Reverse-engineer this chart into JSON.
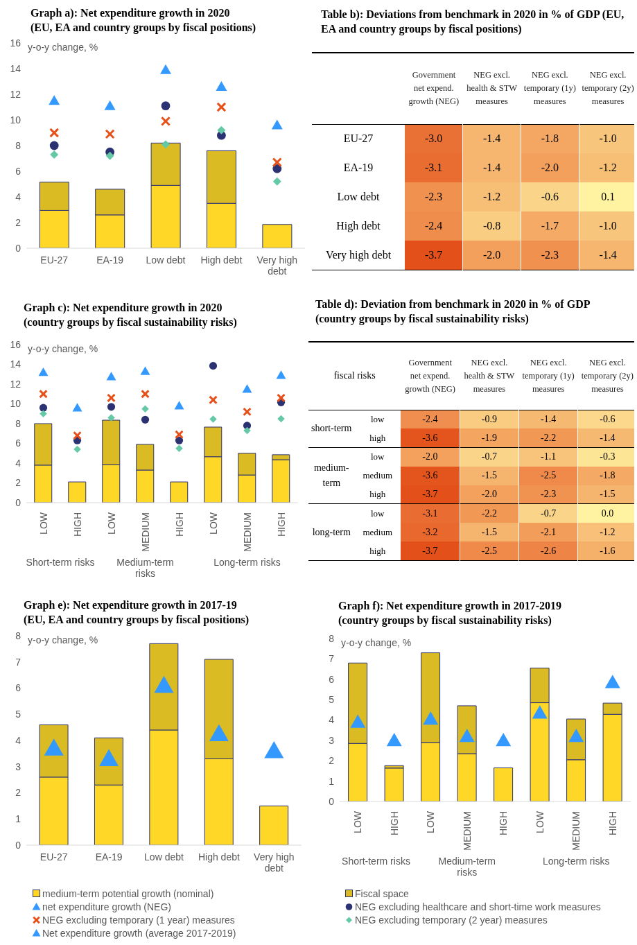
{
  "chart_data": [
    {
      "type": "bar",
      "title": "Graph a): Net expenditure growth in 2020\n(EU, EA and country groups by fiscal positions)",
      "ylabel": "y-o-y change, %",
      "categories": [
        "EU-27",
        "EA-19",
        "Low debt",
        "High debt",
        "Very high debt"
      ],
      "stacked": true,
      "ylim": [
        0,
        16
      ],
      "yticks": [
        0,
        2,
        4,
        6,
        8,
        10,
        12,
        14,
        16
      ],
      "legend": "bottom",
      "series": [
        {
          "name": "medium-term potential growth (nominal)",
          "type": "bar",
          "color": "#ffd726",
          "values": [
            2.95,
            2.6,
            4.9,
            3.5,
            1.85
          ]
        },
        {
          "name": "Fiscal space",
          "type": "bar",
          "color": "#dbbb24",
          "values": [
            2.2,
            2.0,
            3.3,
            4.1,
            null
          ]
        },
        {
          "name": "net expenditure growth (NEG)",
          "type": "scatter",
          "marker": "triangle",
          "color": "#3399ff",
          "values": [
            11.5,
            11.1,
            13.9,
            12.6,
            9.6
          ]
        },
        {
          "name": "NEG excluding healthcare and short-time work measures",
          "type": "scatter",
          "marker": "circle",
          "color": "#2b3272",
          "values": [
            8.0,
            7.5,
            11.1,
            8.8,
            6.2
          ]
        },
        {
          "name": "NEG excluding temporary (1 year) measures",
          "type": "scatter",
          "marker": "cross",
          "color": "#e8501a",
          "values": [
            9.0,
            8.9,
            9.9,
            11.0,
            6.7
          ]
        },
        {
          "name": "NEG excluding temporary (2 year) measures",
          "type": "scatter",
          "marker": "diamond",
          "color": "#66c9a6",
          "values": [
            7.3,
            7.2,
            8.1,
            9.2,
            5.2
          ]
        }
      ]
    },
    {
      "type": "heatmap",
      "title": "Table b): Deviations from benchmark in 2020 in % of GDP (EU, EA and country groups by fiscal positions)",
      "categories": [
        "Government net expend. growth (NEG)",
        "NEG excl. health & STW measures",
        "NEG excl. temporary (1y) measures",
        "NEG excl. temporary (2y) measures"
      ],
      "y_categories": [
        "EU-27",
        "EA-19",
        "Low debt",
        "High debt",
        "Very high debt"
      ],
      "cells": [
        [
          -3.0,
          -1.4,
          -1.8,
          -1.0
        ],
        [
          -3.1,
          -1.4,
          -2.0,
          -1.2
        ],
        [
          -2.3,
          -1.2,
          -0.6,
          0.1
        ],
        [
          -2.4,
          -0.8,
          -1.7,
          -1.0
        ],
        [
          -3.7,
          -2.0,
          -2.3,
          -1.4
        ]
      ],
      "cell_labels": [
        [
          "-3.0",
          "-1.4",
          "-1.8",
          "-1.0"
        ],
        [
          "-3.1",
          "-1.4",
          "-2.0",
          "-1.2"
        ],
        [
          "-2.3",
          "-1.2",
          "-0.6",
          "0.1"
        ],
        [
          "-2.4",
          "-0.8",
          "-1.7",
          "-1.0"
        ],
        [
          "-3.7",
          "-2.0",
          "-2.3",
          "-1.4"
        ]
      ]
    },
    {
      "type": "bar",
      "title": "Graph c): Net expenditure growth in 2020\n(country groups by fiscal sustainability risks)",
      "ylabel": "y-o-y change, %",
      "categories": [
        "LOW",
        "HIGH",
        "LOW",
        "MEDIUM",
        "HIGH",
        "LOW",
        "MEDIUM",
        "HIGH"
      ],
      "annotations": [
        "Short-term risks",
        "Medium-term risks",
        "Long-term risks"
      ],
      "stacked": true,
      "ylim": [
        0,
        16
      ],
      "yticks": [
        0,
        2,
        4,
        6,
        8,
        10,
        12,
        14,
        16
      ],
      "legend": "bottom",
      "series": [
        {
          "name": "medium-term potential growth (nominal)",
          "type": "bar",
          "color": "#ffd726",
          "values": [
            3.8,
            2.1,
            3.85,
            3.3,
            2.1,
            4.65,
            2.8,
            4.35
          ]
        },
        {
          "name": "Fiscal space",
          "type": "bar",
          "color": "#dbbb24",
          "values": [
            4.2,
            null,
            4.5,
            2.6,
            null,
            3.0,
            2.2,
            0.5
          ]
        },
        {
          "name": "net expenditure growth (NEG)",
          "type": "scatter",
          "marker": "triangle",
          "color": "#3399ff",
          "values": [
            13.2,
            9.6,
            12.75,
            13.3,
            9.8,
            null,
            11.5,
            12.9
          ]
        },
        {
          "name": "NEG excluding healthcare and short-time work measures",
          "type": "scatter",
          "marker": "circle",
          "color": "#2b3272",
          "values": [
            9.6,
            6.3,
            9.7,
            8.4,
            6.3,
            13.85,
            7.8,
            10.15
          ]
        },
        {
          "name": "NEG excluding temporary (1 year) measures",
          "type": "scatter",
          "marker": "cross",
          "color": "#e8501a",
          "values": [
            11.0,
            6.8,
            10.6,
            11.0,
            6.9,
            10.4,
            9.2,
            10.6
          ]
        },
        {
          "name": "NEG excluding temporary (2 year) measures",
          "type": "scatter",
          "marker": "diamond",
          "color": "#66c9a6",
          "values": [
            9.0,
            5.4,
            8.6,
            9.5,
            5.5,
            8.45,
            7.3,
            8.5
          ]
        }
      ]
    },
    {
      "type": "heatmap",
      "title": "Table d): Deviation from benchmark in 2020 in % of GDP\n(country groups by fiscal sustainability risks)",
      "ylabel": "fiscal risks",
      "categories": [
        "Government net expend. growth (NEG)",
        "NEG excl. health & STW measures",
        "NEG excl. temporary (1y) measures",
        "NEG excl. temporary (2y) measures"
      ],
      "y_categories": [
        "low",
        "high",
        "low",
        "medium",
        "high",
        "low",
        "medium",
        "high"
      ],
      "annotations": [
        "short-term",
        "medium-term",
        "long-term"
      ],
      "cells": [
        [
          -2.4,
          -0.9,
          -1.4,
          -0.6
        ],
        [
          -3.6,
          -1.9,
          -2.2,
          -1.4
        ],
        [
          -2.0,
          -0.7,
          -1.1,
          -0.3
        ],
        [
          -3.6,
          -1.5,
          -2.5,
          -1.8
        ],
        [
          -3.7,
          -2.0,
          -2.3,
          -1.5
        ],
        [
          -3.1,
          -2.2,
          -0.7,
          0.0
        ],
        [
          -3.2,
          -1.5,
          -2.1,
          -1.2
        ],
        [
          -3.7,
          -2.5,
          -2.6,
          -1.6
        ]
      ],
      "cell_labels": [
        [
          "-2.4",
          "-0.9",
          "-1.4",
          "-0.6"
        ],
        [
          "-3.6",
          "-1.9",
          "-2.2",
          "-1.4"
        ],
        [
          "-2.0",
          "-0.7",
          "-1.1",
          "-0.3"
        ],
        [
          "-3.6",
          "-1.5",
          "-2.5",
          "-1.8"
        ],
        [
          "-3.7",
          "-2.0",
          "-2.3",
          "-1.5"
        ],
        [
          "-3.1",
          "-2.2",
          "-0.7",
          "0.0"
        ],
        [
          "-3.2",
          "-1.5",
          "-2.1",
          "-1.2"
        ],
        [
          "-3.7",
          "-2.5",
          "-2.6",
          "-1.6"
        ]
      ]
    },
    {
      "type": "bar",
      "title": "Graph e): Net expenditure growth in 2017-19\n(EU, EA and country groups by fiscal positions)",
      "ylabel": "y-o-y change, %",
      "categories": [
        "EU-27",
        "EA-19",
        "Low debt",
        "High debt",
        "Very high debt"
      ],
      "stacked": true,
      "ylim": [
        0,
        8
      ],
      "yticks": [
        0,
        1,
        2,
        3,
        4,
        5,
        6,
        7,
        8
      ],
      "legend": "bottom",
      "series": [
        {
          "name": "medium-term potential growth (nominal)",
          "type": "bar",
          "color": "#ffd726",
          "values": [
            2.6,
            2.3,
            4.4,
            3.3,
            1.5
          ]
        },
        {
          "name": "Fiscal space",
          "type": "bar",
          "color": "#dbbb24",
          "values": [
            2.0,
            1.8,
            3.3,
            3.8,
            null
          ]
        },
        {
          "name": "Net expenditure growth (average 2017-2019)",
          "type": "scatter",
          "marker": "triangle",
          "color": "#3399ff",
          "values": [
            3.7,
            3.3,
            6.1,
            4.25,
            3.6
          ]
        }
      ]
    },
    {
      "type": "bar",
      "title": "Graph f): Net expenditure growth in 2017-2019\n(country groups by fiscal sustainability risks)",
      "ylabel": "y-o-y change, %",
      "categories": [
        "LOW",
        "HIGH",
        "LOW",
        "MEDIUM",
        "HIGH",
        "LOW",
        "MEDIUM",
        "HIGH"
      ],
      "annotations": [
        "Short-term risks",
        "Medium-term risks",
        "Long-term risks"
      ],
      "stacked": true,
      "ylim": [
        0,
        8
      ],
      "yticks": [
        0,
        1,
        2,
        3,
        4,
        5,
        6,
        7,
        8
      ],
      "legend": "bottom",
      "series": [
        {
          "name": "medium-term potential growth (nominal)",
          "type": "bar",
          "color": "#ffd726",
          "values": [
            2.85,
            1.64,
            2.9,
            2.35,
            1.65,
            4.85,
            2.05,
            4.28
          ]
        },
        {
          "name": "Fiscal space",
          "type": "bar",
          "color": "#dbbb24",
          "values": [
            3.95,
            0.12,
            4.4,
            2.35,
            null,
            1.7,
            2.0,
            0.55
          ]
        },
        {
          "name": "Net expenditure growth (average 2017-2019)",
          "type": "scatter",
          "marker": "triangle",
          "color": "#3399ff",
          "values": [
            3.9,
            3.0,
            4.05,
            3.2,
            3.0,
            4.35,
            3.2,
            5.85
          ]
        }
      ]
    }
  ]
}
